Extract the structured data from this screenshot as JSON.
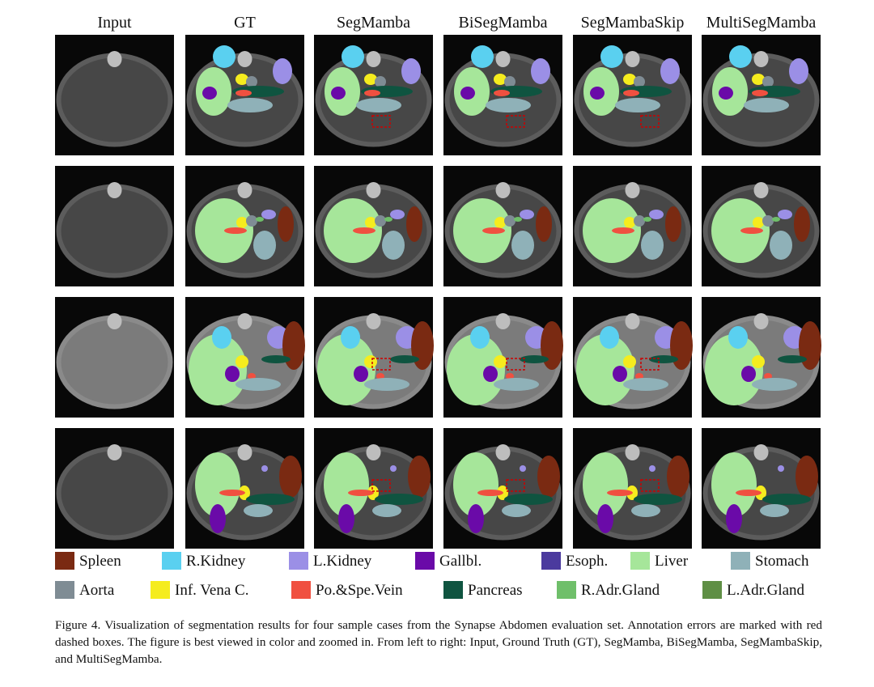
{
  "columns": [
    "Input",
    "GT",
    "SegMamba",
    "BiSegMamba",
    "SegMambaSkip",
    "MultiSegMamba"
  ],
  "legend": [
    {
      "label": "Spleen",
      "color": "#7a2a12"
    },
    {
      "label": "R.Kidney",
      "color": "#5ad0f0"
    },
    {
      "label": "L.Kidney",
      "color": "#9b8fe6"
    },
    {
      "label": "Gallbl.",
      "color": "#6a0aa8"
    },
    {
      "label": "Esoph.",
      "color": "#4b3a9e"
    },
    {
      "label": "Liver",
      "color": "#a6e69a"
    },
    {
      "label": "Stomach",
      "color": "#8fb1b8"
    },
    {
      "label": "Aorta",
      "color": "#7f8c94"
    },
    {
      "label": "Inf. Vena C.",
      "color": "#f5ec1e"
    },
    {
      "label": "Po.&Spe.Vein",
      "color": "#f05040"
    },
    {
      "label": "Pancreas",
      "color": "#0f5440"
    },
    {
      "label": "R.Adr.Gland",
      "color": "#6fbf6a"
    },
    {
      "label": "L.Adr.Gland",
      "color": "#5f8f45"
    }
  ],
  "caption": "Figure 4.  Visualization of segmentation results for four sample cases from the Synapse Abdomen evaluation set.  Annotation errors are marked with red dashed boxes. The figure is best viewed in color and zoomed in. From left to right: Input, Ground Truth (GT), SegMamba, BiSegMamba, SegMambaSkip, and MultiSegMamba."
}
